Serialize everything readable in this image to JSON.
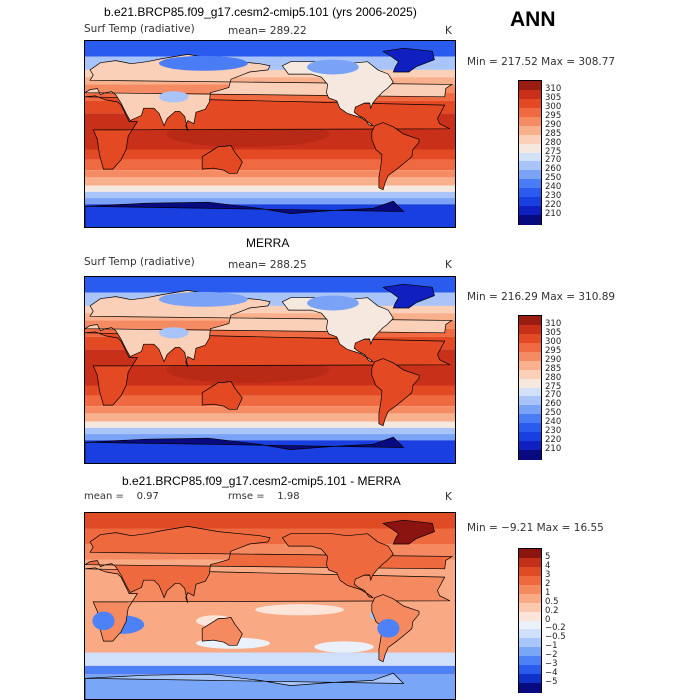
{
  "season": "ANN",
  "colors": {
    "abs_scale": [
      "#0a0a80",
      "#0f1fc0",
      "#1a3fe0",
      "#2a5bef",
      "#4a7df5",
      "#7aa3f7",
      "#a9c4f8",
      "#d2e0f8",
      "#f5e8df",
      "#fbd0b8",
      "#f9b08c",
      "#f58b63",
      "#ef6a40",
      "#e34a24",
      "#c8301a",
      "#9a1c12"
    ],
    "diff_scale": [
      "#0a0a80",
      "#1030c8",
      "#2a5bef",
      "#4d81f5",
      "#7aa6f8",
      "#a8c6fa",
      "#d0e0fb",
      "#eaf1fb",
      "#fde5d9",
      "#fbc9ad",
      "#f9a983",
      "#f58a60",
      "#ee6a3e",
      "#df4b25",
      "#c2301a",
      "#8c1410"
    ]
  },
  "panels": [
    {
      "title": "b.e21.BRCP85.f09_g17.cesm2-cmip5.101 (yrs 2006-2025)",
      "variable": "Surf Temp (radiative)",
      "mean_text": "mean= 289.22",
      "units": "K",
      "minmax": "Min = 217.52 Max = 308.77"
    },
    {
      "title": "MERRA",
      "variable": "Surf Temp (radiative)",
      "mean_text": "mean= 288.25",
      "units": "K",
      "minmax": "Min = 216.29 Max = 310.89"
    },
    {
      "title": "b.e21.BRCP85.f09_g17.cesm2-cmip5.101 - MERRA",
      "mean_text": "mean =    0.97",
      "rmse_text": "rmse =    1.98",
      "units": "K",
      "minmax": "Min =  −9.21 Max =  16.55"
    }
  ],
  "chart_data": [
    {
      "type": "heatmap",
      "title": "b.e21.BRCP85.f09_g17.cesm2-cmip5.101 (yrs 2006-2025)",
      "variable": "Surf Temp (radiative)",
      "units": "K",
      "mean": 289.22,
      "min": 217.52,
      "max": 308.77,
      "legend": "right",
      "colorbar_levels": [
        "310",
        "305",
        "300",
        "295",
        "290",
        "285",
        "280",
        "275",
        "270",
        "260",
        "250",
        "240",
        "230",
        "220",
        "210"
      ]
    },
    {
      "type": "heatmap",
      "title": "MERRA",
      "variable": "Surf Temp (radiative)",
      "units": "K",
      "mean": 288.25,
      "min": 216.29,
      "max": 310.89,
      "legend": "right",
      "colorbar_levels": [
        "310",
        "305",
        "300",
        "295",
        "290",
        "285",
        "280",
        "275",
        "270",
        "260",
        "250",
        "240",
        "230",
        "220",
        "210"
      ]
    },
    {
      "type": "heatmap",
      "title": "b.e21.BRCP85.f09_g17.cesm2-cmip5.101 - MERRA",
      "units": "K",
      "mean": 0.97,
      "rmse": 1.98,
      "min": -9.21,
      "max": 16.55,
      "legend": "right",
      "colorbar_levels": [
        "5",
        "4",
        "3",
        "2",
        "1",
        "0.5",
        "0.2",
        "0",
        "−0.2",
        "−0.5",
        "−1",
        "−2",
        "−3",
        "−4",
        "−5"
      ]
    }
  ]
}
